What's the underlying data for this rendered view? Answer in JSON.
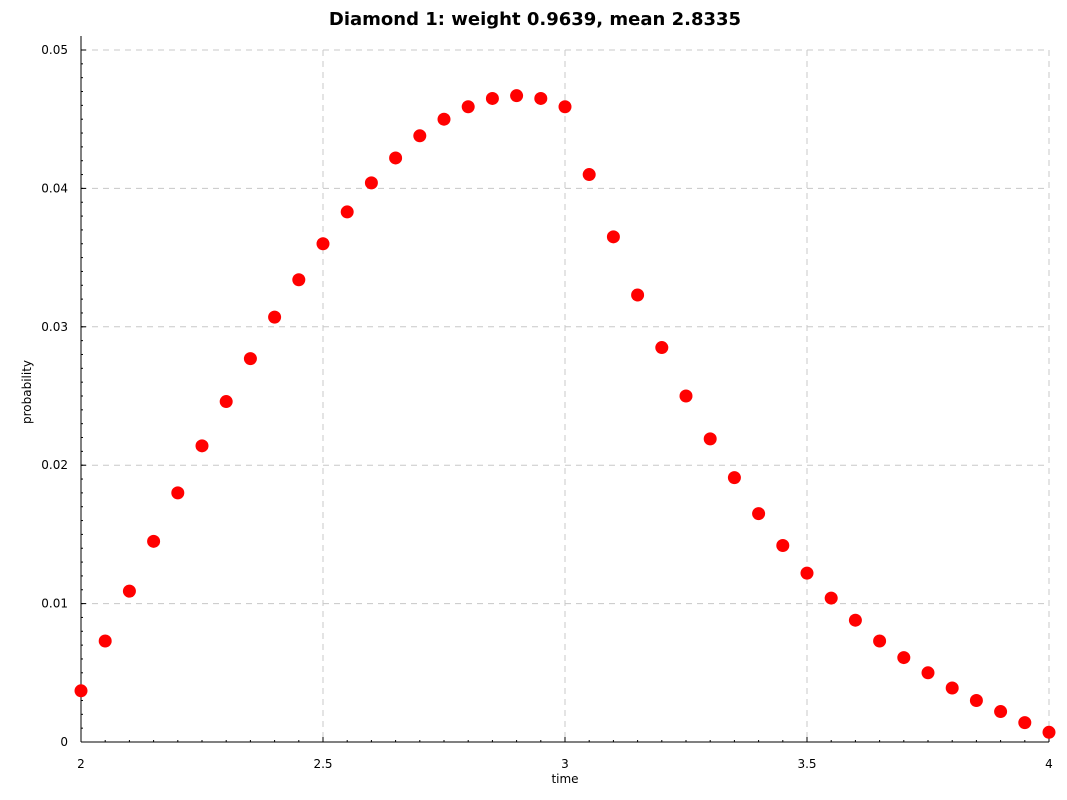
{
  "chart_data": {
    "type": "scatter",
    "title": "Diamond 1: weight 0.9639, mean   2.8335",
    "xlabel": "time",
    "ylabel": "probability",
    "xlim": [
      2,
      4
    ],
    "ylim": [
      0,
      0.05
    ],
    "xticks": [
      2,
      2.5,
      3,
      3.5,
      4
    ],
    "xtick_labels": [
      "2",
      "2.5",
      "3",
      "3.5",
      "4"
    ],
    "yticks": [
      0,
      0.01,
      0.02,
      0.03,
      0.04,
      0.05
    ],
    "ytick_labels": [
      "0",
      "0.01",
      "0.02",
      "0.03",
      "0.04",
      "0.05"
    ],
    "grid": true,
    "series": [
      {
        "color": "#ff0000",
        "x": [
          2.0,
          2.05,
          2.1,
          2.15,
          2.2,
          2.25,
          2.3,
          2.35,
          2.4,
          2.45,
          2.5,
          2.55,
          2.6,
          2.65,
          2.7,
          2.75,
          2.8,
          2.85,
          2.9,
          2.95,
          3.0,
          3.05,
          3.1,
          3.15,
          3.2,
          3.25,
          3.3,
          3.35,
          3.4,
          3.45,
          3.5,
          3.55,
          3.6,
          3.65,
          3.7,
          3.75,
          3.8,
          3.85,
          3.9,
          3.95,
          4.0
        ],
        "y": [
          0.0037,
          0.0073,
          0.0109,
          0.0145,
          0.018,
          0.0214,
          0.0246,
          0.0277,
          0.0307,
          0.0334,
          0.036,
          0.0383,
          0.0404,
          0.0422,
          0.0438,
          0.045,
          0.0459,
          0.0465,
          0.0467,
          0.0465,
          0.0459,
          0.041,
          0.0365,
          0.0323,
          0.0285,
          0.025,
          0.0219,
          0.0191,
          0.0165,
          0.0142,
          0.0122,
          0.0104,
          0.0088,
          0.0073,
          0.0061,
          0.005,
          0.0039,
          0.003,
          0.0022,
          0.0014,
          0.0007
        ]
      }
    ]
  }
}
